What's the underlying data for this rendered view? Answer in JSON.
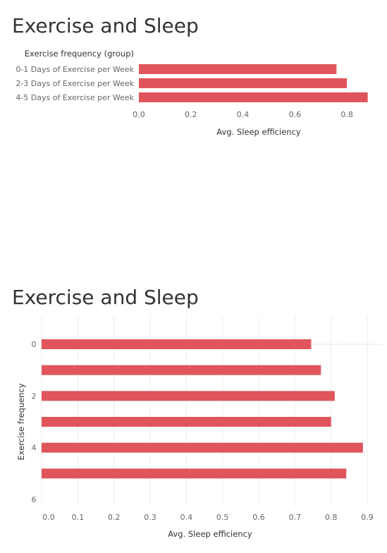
{
  "chart_data": [
    {
      "type": "bar",
      "orientation": "horizontal",
      "title": "Exercise and Sleep",
      "ylabel": "Exercise frequency (group)",
      "xlabel": "Avg. Sleep efficiency",
      "categories": [
        "0-1 Days of Exercise per Week",
        "2-3 Days of Exercise per Week",
        "4-5 Days of Exercise per Week"
      ],
      "values": [
        0.76,
        0.8,
        0.88
      ],
      "xlim": [
        0,
        0.9
      ],
      "xticks": [
        "0.0",
        "0.2",
        "0.4",
        "0.6",
        "0.8"
      ],
      "bar_color": "#e0555b",
      "grid": false
    },
    {
      "type": "bar",
      "orientation": "horizontal",
      "title": "Exercise and Sleep",
      "ylabel": "Exercise frequency",
      "xlabel": "Avg. Sleep efficiency",
      "categories": [
        0,
        1,
        2,
        3,
        4,
        5
      ],
      "values": [
        0.745,
        0.772,
        0.81,
        0.8,
        0.888,
        0.842
      ],
      "ylim": [
        0,
        6
      ],
      "yticks": [
        "0",
        "2",
        "4",
        "6"
      ],
      "xlim": [
        0,
        0.9
      ],
      "xticks": [
        "0.0",
        "0.1",
        "0.2",
        "0.3",
        "0.4",
        "0.5",
        "0.6",
        "0.7",
        "0.8",
        "0.9"
      ],
      "bar_color": "#e0555b",
      "grid": true
    }
  ]
}
